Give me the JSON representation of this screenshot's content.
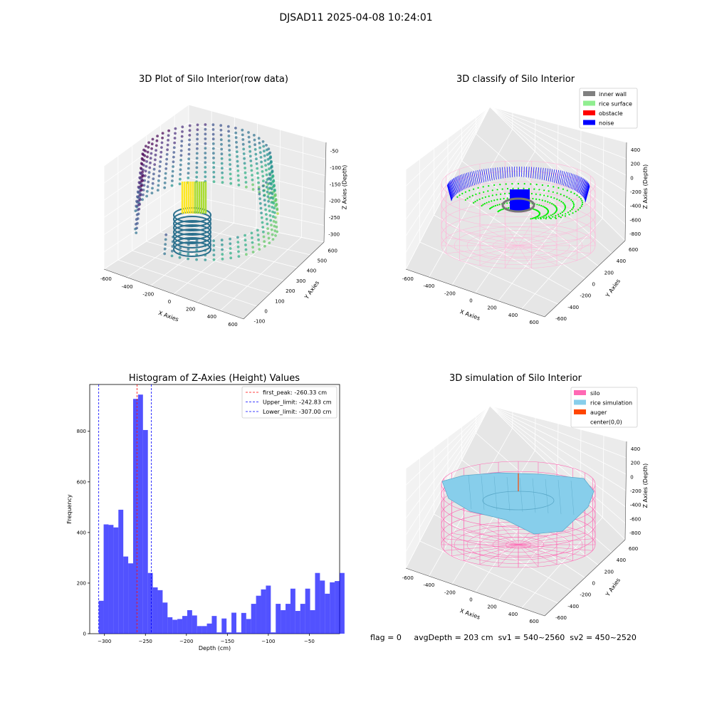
{
  "header": {
    "suptitle": "DJSAD11 2025-04-08 10:24:01"
  },
  "status": {
    "flag": "flag = 0",
    "avg_depth": "avgDepth = 203 cm",
    "sv1": "sv1 = 540~2560",
    "sv2": "sv2 = 450~2520"
  },
  "chart_data": [
    {
      "type": "scatter",
      "title": "3D Plot of Silo Interior(row data)",
      "xlabel": "X Axies",
      "ylabel": "Y Axies",
      "zlabel": "Z Axies (Depth)",
      "x_ticks": [
        "-600",
        "-400",
        "-200",
        "0",
        "200",
        "400",
        "600"
      ],
      "y_ticks": [
        "-100",
        "0",
        "100",
        "200",
        "300",
        "400",
        "500",
        "600"
      ],
      "z_ticks": [
        "-50",
        "-100",
        "-150",
        "-200",
        "-250",
        "-300"
      ],
      "colormap": "viridis"
    },
    {
      "type": "scatter",
      "title": "3D classify of Silo Interior",
      "xlabel": "X Axies",
      "ylabel": "Y Axies",
      "zlabel": "Z Axies (Depth)",
      "x_ticks": [
        "-600",
        "-400",
        "-200",
        "0",
        "200",
        "400",
        "600"
      ],
      "y_ticks": [
        "-600",
        "-400",
        "-200",
        "0",
        "200",
        "400",
        "600"
      ],
      "z_ticks": [
        "400",
        "200",
        "0",
        "-200",
        "-400",
        "-600",
        "-800"
      ],
      "legend_position": "top-right",
      "legend": [
        {
          "label": "inner wall",
          "color": "#808080"
        },
        {
          "label": "rice surface",
          "color": "#90ee90"
        },
        {
          "label": "obstacle",
          "color": "#ff0000"
        },
        {
          "label": "noise",
          "color": "#0000ff"
        }
      ]
    },
    {
      "type": "bar",
      "title": "Histogram of Z-Axies (Height) Values",
      "xlabel": "Depth (cm)",
      "ylabel": "Frequency",
      "xlim": [
        -318,
        -13
      ],
      "ylim": [
        0,
        985
      ],
      "x_ticks": [
        -300,
        -250,
        -200,
        -150,
        -100,
        -50
      ],
      "y_ticks": [
        0,
        200,
        400,
        600,
        800
      ],
      "bar_color": "#0000ff",
      "bin_start": -307,
      "bin_width": 6.0,
      "values": [
        130,
        432,
        430,
        420,
        490,
        305,
        278,
        928,
        945,
        805,
        240,
        183,
        172,
        123,
        65,
        55,
        58,
        70,
        93,
        72,
        30,
        30,
        40,
        70,
        5,
        60,
        5,
        83,
        5,
        82,
        58,
        118,
        150,
        175,
        190,
        5,
        118,
        93,
        118,
        178,
        90,
        118,
        178,
        93,
        240,
        210,
        158,
        203,
        208,
        240
      ],
      "lines": [
        {
          "label": "first_peak: -260.33 cm",
          "value": -260.33,
          "color": "#ff0000"
        },
        {
          "label": "Upper_limit: -242.83 cm",
          "value": -242.83,
          "color": "#0000ff"
        },
        {
          "label": "Lower_limit: -307.00 cm",
          "value": -307.0,
          "color": "#0000ff"
        }
      ],
      "legend_position": "top-right"
    },
    {
      "type": "area",
      "title": "3D simulation of Silo Interior",
      "xlabel": "X Axies",
      "ylabel": "Y Axies",
      "zlabel": "Z Axies (Depth)",
      "x_ticks": [
        "-600",
        "-400",
        "-200",
        "0",
        "200",
        "400",
        "600"
      ],
      "y_ticks": [
        "-600",
        "-400",
        "-200",
        "0",
        "200",
        "400",
        "600"
      ],
      "z_ticks": [
        "400",
        "200",
        "0",
        "-200",
        "-400",
        "-600",
        "-800"
      ],
      "legend_position": "top-right",
      "legend": [
        {
          "label": "silo",
          "color": "#ff69b4"
        },
        {
          "label": "rice simulation",
          "color": "#87ceeb"
        },
        {
          "label": "auger",
          "color": "#ff4500"
        },
        {
          "label": "center(0,0)",
          "color": ""
        }
      ]
    }
  ]
}
